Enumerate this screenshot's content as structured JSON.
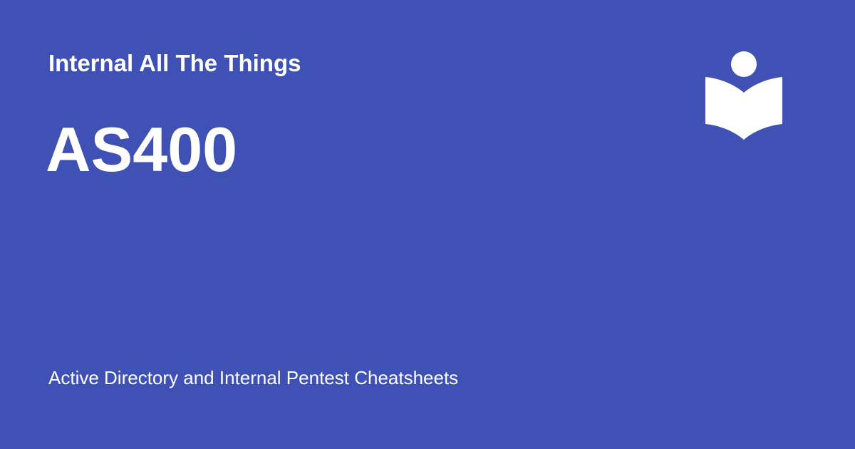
{
  "site": {
    "name": "Internal All The Things"
  },
  "page": {
    "title": "AS400",
    "description": "Active Directory and Internal Pentest Cheatsheets"
  },
  "logo": {
    "icon": "book-reader-icon",
    "color": "#ffffff"
  },
  "theme": {
    "background": "#3f51b5",
    "text_color": "#ffffff"
  }
}
